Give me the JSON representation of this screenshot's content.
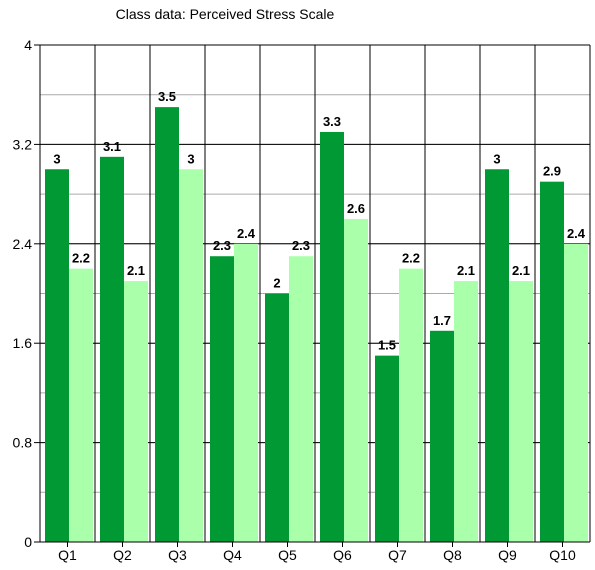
{
  "chart_data": {
    "type": "bar",
    "title": "Class data: Perceived Stress Scale",
    "xlabel": "",
    "ylabel": "",
    "categories": [
      "Q1",
      "Q2",
      "Q3",
      "Q4",
      "Q5",
      "Q6",
      "Q7",
      "Q8",
      "Q9",
      "Q10"
    ],
    "series": [
      {
        "values": [
          3,
          3.1,
          3.5,
          2.3,
          2,
          3.3,
          1.5,
          1.7,
          3,
          2.9
        ],
        "color": "#009933"
      },
      {
        "values": [
          2.2,
          2.1,
          3,
          2.4,
          2.3,
          2.6,
          2.2,
          2.1,
          2.1,
          2.4
        ],
        "color": "#aaffaa"
      }
    ],
    "ylim": [
      0,
      4
    ],
    "y_ticks": [
      "0",
      "0.8",
      "1.6",
      "2.4",
      "3.2",
      "4"
    ],
    "y_minor_step": 0.4,
    "grid": true,
    "legend": "none"
  }
}
